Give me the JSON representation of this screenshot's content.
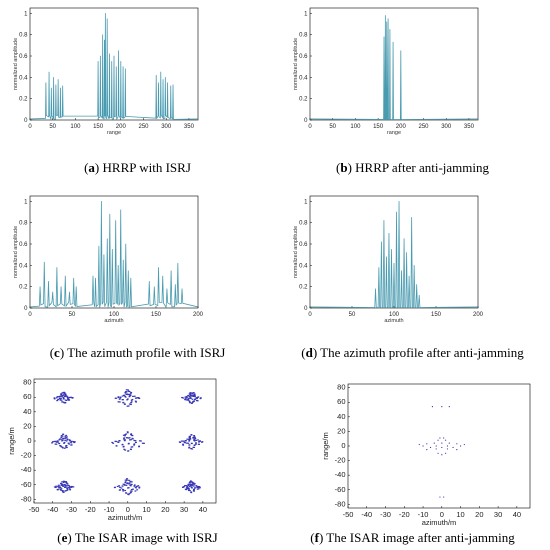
{
  "colors": {
    "signal": "#4a9bb0",
    "scatter": "#3535b5",
    "frame": "#000000"
  },
  "captions": [
    {
      "letter": "a",
      "text": " HRRP with ISRJ"
    },
    {
      "letter": "b",
      "text": " HRRP after anti-jamming"
    },
    {
      "letter": "c",
      "text": " The azimuth profile with ISRJ"
    },
    {
      "letter": "d",
      "text": " The azimuth profile after anti-jamming"
    },
    {
      "letter": "e",
      "text": " The ISAR image with ISRJ"
    },
    {
      "letter": "f",
      "text": " The ISAR image after anti-jamming"
    }
  ],
  "chart_data": [
    {
      "type": "line",
      "xlabel": "range",
      "ylabel": "normalized amplitude",
      "xlim": [
        0,
        370
      ],
      "ylim": [
        0,
        1.05
      ],
      "xticks": [
        0,
        50,
        100,
        150,
        200,
        250,
        300,
        350
      ],
      "yticks": [
        0,
        0.2,
        0.4,
        0.6,
        0.8,
        1
      ],
      "peaks": [
        [
          35,
          0.35
        ],
        [
          42,
          0.45
        ],
        [
          47,
          0.3
        ],
        [
          52,
          0.4
        ],
        [
          57,
          0.33
        ],
        [
          62,
          0.38
        ],
        [
          67,
          0.3
        ],
        [
          72,
          0.32
        ],
        [
          150,
          0.55
        ],
        [
          155,
          0.6
        ],
        [
          160,
          0.8
        ],
        [
          164,
          0.75
        ],
        [
          166,
          1.0
        ],
        [
          170,
          0.95
        ],
        [
          175,
          0.62
        ],
        [
          180,
          0.55
        ],
        [
          185,
          0.6
        ],
        [
          190,
          0.5
        ],
        [
          195,
          0.65
        ],
        [
          200,
          0.55
        ],
        [
          205,
          0.5
        ],
        [
          210,
          0.48
        ],
        [
          278,
          0.42
        ],
        [
          283,
          0.35
        ],
        [
          288,
          0.45
        ],
        [
          293,
          0.38
        ],
        [
          298,
          0.4
        ],
        [
          303,
          0.35
        ],
        [
          310,
          0.32
        ],
        [
          315,
          0.33
        ]
      ]
    },
    {
      "type": "line",
      "xlabel": "range",
      "ylabel": "normalized amplitude",
      "xlim": [
        0,
        370
      ],
      "ylim": [
        0,
        1.05
      ],
      "xticks": [
        0,
        50,
        100,
        150,
        200,
        250,
        300,
        350
      ],
      "yticks": [
        0,
        0.2,
        0.4,
        0.6,
        0.8,
        1
      ],
      "peaks": [
        [
          163,
          0.78
        ],
        [
          166,
          0.98
        ],
        [
          169,
          0.92
        ],
        [
          172,
          0.95
        ],
        [
          176,
          0.85
        ],
        [
          183,
          0.73
        ],
        [
          200,
          0.65
        ]
      ]
    },
    {
      "type": "line",
      "xlabel": "azimuth",
      "ylabel": "normalized amplitude",
      "xlim": [
        0,
        200
      ],
      "ylim": [
        0,
        1.05
      ],
      "xticks": [
        0,
        50,
        100,
        150,
        200
      ],
      "yticks": [
        0,
        0.2,
        0.4,
        0.6,
        0.8,
        1
      ],
      "peaks": [
        [
          12,
          0.2
        ],
        [
          17,
          0.43
        ],
        [
          22,
          0.25
        ],
        [
          27,
          0.15
        ],
        [
          32,
          0.38
        ],
        [
          37,
          0.2
        ],
        [
          42,
          0.3
        ],
        [
          47,
          0.15
        ],
        [
          52,
          0.28
        ],
        [
          55,
          0.2
        ],
        [
          75,
          0.3
        ],
        [
          78,
          0.28
        ],
        [
          82,
          0.58
        ],
        [
          85,
          1.0
        ],
        [
          88,
          0.5
        ],
        [
          92,
          0.65
        ],
        [
          95,
          0.88
        ],
        [
          98,
          0.55
        ],
        [
          102,
          0.82
        ],
        [
          105,
          0.4
        ],
        [
          108,
          0.92
        ],
        [
          111,
          0.45
        ],
        [
          114,
          0.6
        ],
        [
          117,
          0.35
        ],
        [
          120,
          0.28
        ],
        [
          142,
          0.25
        ],
        [
          148,
          0.2
        ],
        [
          153,
          0.38
        ],
        [
          158,
          0.3
        ],
        [
          163,
          0.18
        ],
        [
          168,
          0.35
        ],
        [
          173,
          0.22
        ],
        [
          176,
          0.42
        ],
        [
          181,
          0.18
        ]
      ]
    },
    {
      "type": "line",
      "xlabel": "azimuth",
      "ylabel": "normalized amplitude",
      "xlim": [
        0,
        200
      ],
      "ylim": [
        0,
        1.05
      ],
      "xticks": [
        0,
        50,
        100,
        150,
        200
      ],
      "yticks": [
        0,
        0.2,
        0.4,
        0.6,
        0.8,
        1
      ],
      "peaks": [
        [
          78,
          0.18
        ],
        [
          82,
          0.38
        ],
        [
          85,
          0.62
        ],
        [
          88,
          0.82
        ],
        [
          91,
          0.48
        ],
        [
          94,
          0.7
        ],
        [
          97,
          0.55
        ],
        [
          100,
          0.42
        ],
        [
          103,
          0.9
        ],
        [
          106,
          1.0
        ],
        [
          109,
          0.35
        ],
        [
          112,
          0.65
        ],
        [
          115,
          0.52
        ],
        [
          118,
          0.3
        ],
        [
          121,
          0.85
        ],
        [
          124,
          0.4
        ],
        [
          127,
          0.22
        ],
        [
          130,
          0.12
        ]
      ]
    },
    {
      "type": "scatter",
      "xlabel": "azimuth/m",
      "ylabel": "range/m",
      "xlim": [
        -50,
        47
      ],
      "ylim": [
        -85,
        85
      ],
      "xticks": [
        -50,
        -40,
        -30,
        -20,
        -10,
        0,
        10,
        20,
        30,
        40
      ],
      "yticks": [
        -80,
        -60,
        -40,
        -20,
        0,
        20,
        40,
        60,
        80
      ],
      "clusters": [
        [
          -34,
          60,
          0.7
        ],
        [
          0,
          60,
          1.0
        ],
        [
          34,
          60,
          0.7
        ],
        [
          -34,
          0,
          0.9
        ],
        [
          0,
          0,
          1.25
        ],
        [
          34,
          0,
          0.9
        ],
        [
          -34,
          -62,
          0.7
        ],
        [
          0,
          -62,
          1.0
        ],
        [
          34,
          -62,
          0.7
        ]
      ]
    },
    {
      "type": "scatter",
      "xlabel": "azimuth/m",
      "ylabel": "range/m",
      "xlim": [
        -50,
        47
      ],
      "ylim": [
        -85,
        85
      ],
      "xticks": [
        -50,
        -40,
        -30,
        -20,
        -10,
        0,
        10,
        20,
        30,
        40
      ],
      "yticks": [
        -80,
        -60,
        -40,
        -20,
        0,
        20,
        40,
        60,
        80
      ],
      "points": [
        [
          -5,
          54
        ],
        [
          0,
          54
        ],
        [
          4,
          54
        ],
        [
          -1,
          11
        ],
        [
          1,
          11
        ],
        [
          -2,
          8
        ],
        [
          2,
          8
        ],
        [
          -12,
          2
        ],
        [
          -8,
          3
        ],
        [
          -4,
          4
        ],
        [
          0,
          4
        ],
        [
          4,
          4
        ],
        [
          8,
          3
        ],
        [
          12,
          2
        ],
        [
          -10,
          0
        ],
        [
          -3,
          0
        ],
        [
          3,
          0
        ],
        [
          10,
          0
        ],
        [
          -6,
          -2
        ],
        [
          0,
          -2
        ],
        [
          6,
          -2
        ],
        [
          -8,
          -5
        ],
        [
          -3,
          -4
        ],
        [
          3,
          -4
        ],
        [
          8,
          -5
        ],
        [
          -2,
          -10
        ],
        [
          2,
          -10
        ],
        [
          0,
          -12
        ],
        [
          -1,
          -70
        ],
        [
          1,
          -70
        ]
      ]
    }
  ]
}
